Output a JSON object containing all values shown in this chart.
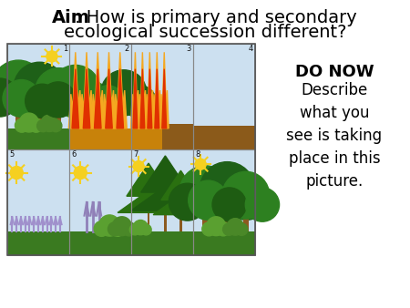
{
  "title_fontsize": 14,
  "do_now_fontsize": 13,
  "desc_fontsize": 12,
  "bg_color": "#ffffff",
  "cell_labels": [
    "1",
    "2",
    "3",
    "4",
    "5",
    "6",
    "7",
    "8"
  ],
  "sky_blue": "#cce0f0",
  "ground_green": "#3a7a20",
  "ground_brown": "#8b5a1a",
  "fire_orange": "#f5a820",
  "fire_red": "#cc2200",
  "tree_green": "#2a7d1a",
  "tree_dark": "#1a5c10",
  "trunk_brown": "#8b5a20",
  "shrub_light": "#6ab04c",
  "shrub_mid": "#4a8a30",
  "sun_yellow": "#f5d020",
  "lavender": "#9988bb",
  "label_color": "#111111",
  "label_fontsize": 6,
  "border_color": "#888888",
  "border_lw": 0.8
}
